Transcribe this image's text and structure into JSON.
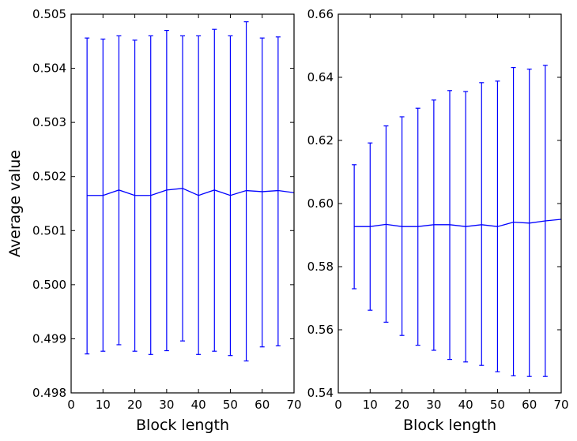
{
  "chart_data": [
    {
      "type": "line",
      "errorbars": true,
      "xlabel": "Block length",
      "ylabel": "Average value",
      "xlim": [
        0,
        70
      ],
      "ylim": [
        0.498,
        0.505
      ],
      "xticks": [
        "0",
        "10",
        "20",
        "30",
        "40",
        "50",
        "60",
        "70"
      ],
      "yticks": [
        "0.498",
        "0.499",
        "0.500",
        "0.501",
        "0.502",
        "0.503",
        "0.504",
        "0.505"
      ],
      "grid": false,
      "color": "#0000ff",
      "x": [
        5,
        10,
        15,
        20,
        25,
        30,
        35,
        40,
        45,
        50,
        55,
        60,
        65,
        70
      ],
      "y": [
        0.50165,
        0.50165,
        0.50175,
        0.50165,
        0.50165,
        0.50175,
        0.50178,
        0.50165,
        0.50175,
        0.50165,
        0.50174,
        0.50172,
        0.50174,
        0.5017
      ],
      "err_upper": [
        0.50456,
        0.50454,
        0.5046,
        0.50452,
        0.5046,
        0.5047,
        0.5046,
        0.5046,
        0.50472,
        0.5046,
        0.50486,
        0.50456,
        0.50458,
        null
      ],
      "err_lower": [
        0.49872,
        0.49877,
        0.49889,
        0.49877,
        0.49871,
        0.49878,
        0.49896,
        0.49871,
        0.49877,
        0.49869,
        0.49859,
        0.49885,
        0.49887,
        null
      ]
    },
    {
      "type": "line",
      "errorbars": true,
      "xlabel": "Block length",
      "ylabel": "",
      "xlim": [
        0,
        70
      ],
      "ylim": [
        0.54,
        0.66
      ],
      "xticks": [
        "0",
        "10",
        "20",
        "30",
        "40",
        "50",
        "60",
        "70"
      ],
      "yticks": [
        "0.54",
        "0.56",
        "0.58",
        "0.60",
        "0.62",
        "0.64",
        "0.66"
      ],
      "grid": false,
      "color": "#0000ff",
      "x": [
        5,
        10,
        15,
        20,
        25,
        30,
        35,
        40,
        45,
        50,
        55,
        60,
        65,
        70
      ],
      "y": [
        0.5927,
        0.5927,
        0.5934,
        0.5927,
        0.5927,
        0.5933,
        0.5933,
        0.5927,
        0.5933,
        0.5927,
        0.5941,
        0.5938,
        0.5945,
        0.595
      ],
      "err_upper": [
        0.6123,
        0.6192,
        0.6246,
        0.6275,
        0.6302,
        0.6328,
        0.6358,
        0.6355,
        0.6383,
        0.6388,
        0.6431,
        0.6426,
        0.6438,
        null
      ],
      "err_lower": [
        0.573,
        0.5662,
        0.5624,
        0.5582,
        0.5551,
        0.5535,
        0.5506,
        0.5498,
        0.5487,
        0.5467,
        0.5454,
        0.5452,
        0.5452,
        null
      ]
    }
  ]
}
